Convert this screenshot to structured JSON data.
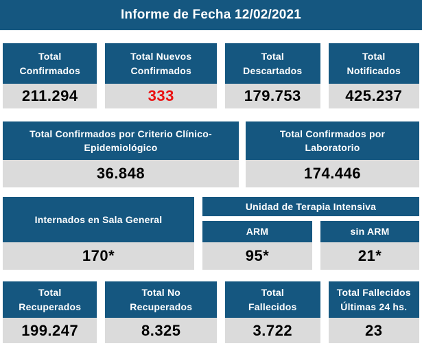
{
  "colors": {
    "primary": "#155780",
    "value_bg": "#dbdbdb",
    "alert": "#ea1212",
    "value_text": "#000000"
  },
  "header": {
    "title": "Informe de Fecha 12/02/2021"
  },
  "summary_cards": [
    {
      "label": "Total\nConfirmados",
      "value": "211.294",
      "alert": false
    },
    {
      "label": "Total Nuevos\nConfirmados",
      "value": "333",
      "alert": true
    },
    {
      "label": "Total\nDescartados",
      "value": "179.753",
      "alert": false
    },
    {
      "label": "Total\nNotificados",
      "value": "425.237",
      "alert": false
    }
  ],
  "criteria_cards": [
    {
      "label": "Total Confirmados por Criterio Clínico-\nEpidemiológico",
      "value": "36.848"
    },
    {
      "label": "Total Confirmados por\nLaboratorio",
      "value": "174.446"
    }
  ],
  "hospitalization": {
    "general_ward": {
      "label": "Internados en Sala General",
      "value": "170*"
    },
    "icu": {
      "label": "Unidad de Terapia Intensiva",
      "columns": [
        {
          "label": "ARM",
          "value": "95*"
        },
        {
          "label": "sin ARM",
          "value": "21*"
        }
      ]
    }
  },
  "outcome_cards": [
    {
      "label": "Total\nRecuperados",
      "value": "199.247"
    },
    {
      "label": "Total No\nRecuperados",
      "value": "8.325"
    },
    {
      "label": "Total\nFallecidos",
      "value": "3.722"
    },
    {
      "label": "Total Fallecidos\nÚltimas 24 hs.",
      "value": "23"
    }
  ]
}
